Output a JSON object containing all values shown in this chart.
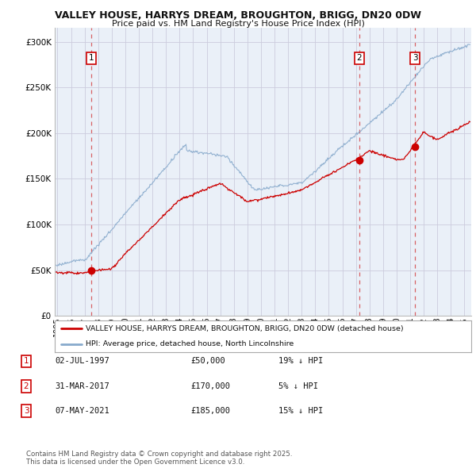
{
  "title": "VALLEY HOUSE, HARRYS DREAM, BROUGHTON, BRIGG, DN20 0DW",
  "subtitle": "Price paid vs. HM Land Registry's House Price Index (HPI)",
  "xlim_start": 1994.8,
  "xlim_end": 2025.5,
  "ylim": [
    0,
    315000
  ],
  "yticks": [
    0,
    50000,
    100000,
    150000,
    200000,
    250000,
    300000
  ],
  "ytick_labels": [
    "£0",
    "£50K",
    "£100K",
    "£150K",
    "£200K",
    "£250K",
    "£300K"
  ],
  "sale_dates_num": [
    1997.5,
    2017.25,
    2021.35
  ],
  "sale_prices": [
    50000,
    170000,
    185000
  ],
  "sale_labels": [
    "1",
    "2",
    "3"
  ],
  "red_line_color": "#cc0000",
  "blue_line_color": "#88aacc",
  "marker_color": "#cc0000",
  "grid_color": "#ccccdd",
  "dashed_line_color": "#cc0000",
  "background_color": "#ffffff",
  "plot_bg_color": "#eaf0f8",
  "legend_label_red": "VALLEY HOUSE, HARRYS DREAM, BROUGHTON, BRIGG, DN20 0DW (detached house)",
  "legend_label_blue": "HPI: Average price, detached house, North Lincolnshire",
  "table_entries": [
    {
      "num": "1",
      "date": "02-JUL-1997",
      "price": "£50,000",
      "diff": "19% ↓ HPI"
    },
    {
      "num": "2",
      "date": "31-MAR-2017",
      "price": "£170,000",
      "diff": "5% ↓ HPI"
    },
    {
      "num": "3",
      "date": "07-MAY-2021",
      "price": "£185,000",
      "diff": "15% ↓ HPI"
    }
  ],
  "footer": "Contains HM Land Registry data © Crown copyright and database right 2025.\nThis data is licensed under the Open Government Licence v3.0.",
  "xticks": [
    1995,
    1996,
    1997,
    1998,
    1999,
    2000,
    2001,
    2002,
    2003,
    2004,
    2005,
    2006,
    2007,
    2008,
    2009,
    2010,
    2011,
    2012,
    2013,
    2014,
    2015,
    2016,
    2017,
    2018,
    2019,
    2020,
    2021,
    2022,
    2023,
    2024,
    2025
  ]
}
